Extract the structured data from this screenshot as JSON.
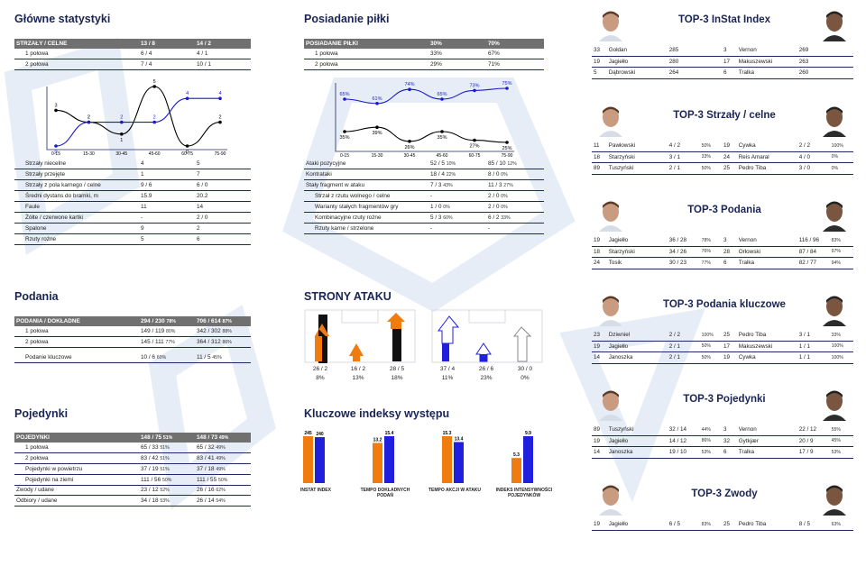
{
  "main_stats": {
    "title": "Główne statystyki",
    "header": {
      "label": "STRZAŁY / CELNE",
      "home": "13 / 8",
      "away": "14 / 2"
    },
    "halves": [
      {
        "label": "1 połowa",
        "home": "6 / 4",
        "away": "4 / 1"
      },
      {
        "label": "2 połowa",
        "home": "7 / 4",
        "away": "10 / 1"
      }
    ],
    "rows": [
      {
        "label": "Strzały niecelne",
        "home": "4",
        "away": "5"
      },
      {
        "label": "Strzały przejęte",
        "home": "1",
        "away": "7"
      },
      {
        "label": "Strzały z pola karnego / celne",
        "home": "9 / 6",
        "away": "6 / 0"
      },
      {
        "label": "Średni dystans do bramki, m",
        "home": "15.9",
        "away": "20.2"
      },
      {
        "label": "Faule",
        "home": "11",
        "away": "14"
      },
      {
        "label": "Żółte / czerwone kartki",
        "home": "-",
        "away": "2 / 0"
      },
      {
        "label": "Spalone",
        "home": "9",
        "away": "2"
      },
      {
        "label": "Rzuty rożne",
        "home": "5",
        "away": "6"
      }
    ]
  },
  "possession": {
    "title": "Posiadanie piłki",
    "header": {
      "label": "POSIADANIE PIŁKI",
      "home": "30%",
      "away": "70%"
    },
    "halves": [
      {
        "label": "1 połowa",
        "home": "33%",
        "away": "67%"
      },
      {
        "label": "2 połowa",
        "home": "29%",
        "away": "71%"
      }
    ],
    "rows": [
      {
        "label": "Ataki pozycyjne",
        "home": "52 / 5",
        "hp": "10%",
        "away": "85 / 10",
        "ap": "12%",
        "indent": false
      },
      {
        "label": "Kontrataki",
        "home": "18 / 4",
        "hp": "22%",
        "away": "8 / 0",
        "ap": "0%",
        "indent": false
      },
      {
        "label": "Stały fragment w ataku",
        "home": "7 / 3",
        "hp": "43%",
        "away": "11 / 3",
        "ap": "27%",
        "indent": false
      },
      {
        "label": "Strzał z rzutu wolnego / celne",
        "home": "-",
        "hp": "",
        "away": "2 / 0",
        "ap": "0%",
        "indent": true
      },
      {
        "label": "Warianty stałych fragmentów gry",
        "home": "1 / 0",
        "hp": "0%",
        "away": "2 / 0",
        "ap": "0%",
        "indent": true
      },
      {
        "label": "Kombinacyjne rzuty rożne",
        "home": "5 / 3",
        "hp": "60%",
        "away": "6 / 2",
        "ap": "33%",
        "indent": true
      },
      {
        "label": "Rzuty karne / strzelone",
        "home": "-",
        "hp": "",
        "away": "-",
        "ap": "",
        "indent": true
      }
    ]
  },
  "passes": {
    "title": "Podania",
    "header": {
      "label": "PODANIA / DOKŁADNE",
      "home": "294 / 230",
      "hp": "78%",
      "away": "706 / 614",
      "ap": "87%"
    },
    "rows": [
      {
        "label": "1 połowa",
        "home": "149 / 119",
        "hp": "80%",
        "away": "342 / 302",
        "ap": "88%"
      },
      {
        "label": "2 połowa",
        "home": "145 / 111",
        "hp": "77%",
        "away": "364 / 312",
        "ap": "86%"
      },
      {
        "label": "Podanie kluczowe",
        "home": "10 / 6",
        "hp": "60%",
        "away": "11 / 5",
        "ap": "45%"
      }
    ]
  },
  "duels": {
    "title": "Pojedynki",
    "header": {
      "label": "POJEDYNKI",
      "home": "148 / 75",
      "hp": "51%",
      "away": "148 / 73",
      "ap": "49%"
    },
    "rows": [
      {
        "label": "1 połowa",
        "home": "65 / 33",
        "hp": "51%",
        "away": "65 / 32",
        "ap": "49%",
        "group": 0
      },
      {
        "label": "2 połowa",
        "home": "83 / 42",
        "hp": "51%",
        "away": "83 / 41",
        "ap": "49%",
        "group": 0
      },
      {
        "label": "Pojedynki w powietrzu",
        "home": "37 / 19",
        "hp": "51%",
        "away": "37 / 18",
        "ap": "49%",
        "group": 1
      },
      {
        "label": "Pojedynki na ziemi",
        "home": "111 / 56",
        "hp": "50%",
        "away": "111 / 55",
        "ap": "50%",
        "group": 1
      },
      {
        "label": "Zwody / udane",
        "home": "23 / 12",
        "hp": "52%",
        "away": "26 / 16",
        "ap": "62%",
        "group": 2
      },
      {
        "label": "Odbiory / udane",
        "home": "34 / 18",
        "hp": "53%",
        "away": "26 / 14",
        "ap": "54%",
        "group": 2
      }
    ]
  },
  "attack_sides": {
    "title": "STRONY ATAKU",
    "home": [
      {
        "value": "26 / 2",
        "pct": "8%"
      },
      {
        "value": "16 / 2",
        "pct": "13%"
      },
      {
        "value": "28 / 5",
        "pct": "18%"
      }
    ],
    "away": [
      {
        "value": "37 / 4",
        "pct": "11%"
      },
      {
        "value": "26 / 6",
        "pct": "23%"
      },
      {
        "value": "30 / 0",
        "pct": "0%"
      }
    ]
  },
  "key_indexes": {
    "title": "Kluczowe indeksy występu",
    "items": [
      {
        "label": "INSTAT INDEX",
        "home": 245,
        "away": 240
      },
      {
        "label": "TEMPO DOKŁADNYCH PODAŃ",
        "home": 13.2,
        "away": 15.4
      },
      {
        "label": "TEMPO AKCJI W ATAKU",
        "home": 15.3,
        "away": 13.4
      },
      {
        "label": "INDEKS INTENSYWNOŚCI POJEDYNKÓW",
        "home": 5.3,
        "away": 9.9
      }
    ]
  },
  "chart_data": [
    {
      "type": "line",
      "categories": [
        "0-15",
        "15-30",
        "30-45",
        "45-60",
        "60-75",
        "75-90"
      ],
      "series": [
        {
          "values": [
            3,
            2,
            1,
            5,
            0,
            2
          ],
          "color": "#000000"
        },
        {
          "values": [
            0,
            2,
            2,
            2,
            4,
            4
          ],
          "color": "#1a1acc"
        }
      ]
    },
    {
      "type": "line",
      "categories": [
        "0-15",
        "15-30",
        "30-45",
        "45-60",
        "60-75",
        "75-90"
      ],
      "series": [
        {
          "values": [
            35,
            39,
            26,
            35,
            27,
            25
          ],
          "color": "#000000"
        },
        {
          "values": [
            65,
            61,
            74,
            65,
            73,
            75
          ],
          "color": "#1a1acc"
        }
      ]
    }
  ],
  "top3": [
    {
      "title": "TOP-3 InStat Index",
      "home": [
        [
          "33",
          "Gołdan",
          "285",
          ""
        ],
        [
          "19",
          "Jagiełło",
          "280",
          ""
        ],
        [
          "5",
          "Dąbrowski",
          "264",
          ""
        ]
      ],
      "away": [
        [
          "3",
          "Vernon",
          "269",
          ""
        ],
        [
          "17",
          "Makuszewski",
          "263",
          ""
        ],
        [
          "6",
          "Tralka",
          "260",
          ""
        ]
      ]
    },
    {
      "title": "TOP-3 Strzały / celne",
      "home": [
        [
          "11",
          "Pawłowski",
          "4 / 2",
          "50%"
        ],
        [
          "18",
          "Starzyński",
          "3 / 1",
          "33%"
        ],
        [
          "89",
          "Tuszyński",
          "2 / 1",
          "50%"
        ]
      ],
      "away": [
        [
          "19",
          "Cywka",
          "2 / 2",
          "100%"
        ],
        [
          "24",
          "Reis Amaral",
          "4 / 0",
          "0%"
        ],
        [
          "25",
          "Pedro Tiba",
          "3 / 0",
          "0%"
        ]
      ]
    },
    {
      "title": "TOP-3 Podania",
      "home": [
        [
          "19",
          "Jagiełło",
          "36 / 28",
          "78%"
        ],
        [
          "18",
          "Starzyński",
          "34 / 26",
          "76%"
        ],
        [
          "24",
          "Tosik",
          "30 / 23",
          "77%"
        ]
      ],
      "away": [
        [
          "3",
          "Vernon",
          "116 / 96",
          "83%"
        ],
        [
          "28",
          "Orłowski",
          "87 / 84",
          "97%"
        ],
        [
          "6",
          "Tralka",
          "82 / 77",
          "94%"
        ]
      ]
    },
    {
      "title": "TOP-3 Podania kluczowe",
      "home": [
        [
          "23",
          "Dziwniel",
          "2 / 2",
          "100%"
        ],
        [
          "19",
          "Jagiełło",
          "2 / 1",
          "50%"
        ],
        [
          "14",
          "Janoszka",
          "2 / 1",
          "50%"
        ]
      ],
      "away": [
        [
          "25",
          "Pedro Tiba",
          "3 / 1",
          "33%"
        ],
        [
          "17",
          "Makuszewski",
          "1 / 1",
          "100%"
        ],
        [
          "19",
          "Cywka",
          "1 / 1",
          "100%"
        ]
      ]
    },
    {
      "title": "TOP-3 Pojedynki",
      "home": [
        [
          "89",
          "Tuszyński",
          "32 / 14",
          "44%"
        ],
        [
          "19",
          "Jagiełło",
          "14 / 12",
          "86%"
        ],
        [
          "14",
          "Janoszka",
          "19 / 10",
          "53%"
        ]
      ],
      "away": [
        [
          "3",
          "Vernon",
          "22 / 12",
          "55%"
        ],
        [
          "32",
          "Gytkjær",
          "20 / 9",
          "45%"
        ],
        [
          "6",
          "Tralka",
          "17 / 9",
          "53%"
        ]
      ]
    },
    {
      "title": "TOP-3 Zwody",
      "home": [
        [
          "19",
          "Jagiełło",
          "6 / 5",
          "83%"
        ]
      ],
      "away": [
        [
          "25",
          "Pedro Tiba",
          "8 / 5",
          "63%"
        ]
      ]
    }
  ],
  "colors": {
    "home": "#f07c10",
    "away": "#1f1fdd",
    "header": "#707070",
    "title": "#1a2455",
    "row_line": "#1c2a66",
    "black": "#111111"
  }
}
